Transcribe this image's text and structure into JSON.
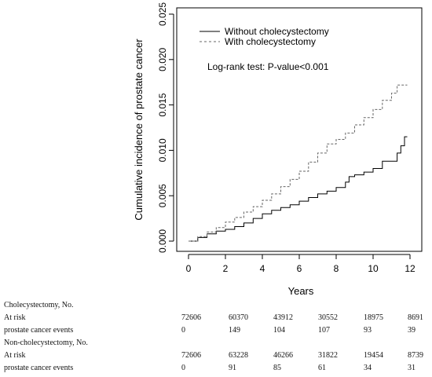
{
  "chart_data": {
    "type": "line",
    "xlabel": "Years",
    "ylabel": "Cumulative incidence of prostate cancer",
    "xlim": [
      0,
      12
    ],
    "ylim": [
      0,
      0.025
    ],
    "x_ticks": [
      "0",
      "2",
      "4",
      "6",
      "8",
      "10",
      "12"
    ],
    "y_ticks": [
      "0.000",
      "0.005",
      "0.010",
      "0.015",
      "0.020",
      "0.025"
    ],
    "grid": false,
    "legend_position": "top-left",
    "annotation": "Log-rank test: P-value<0.001",
    "series": [
      {
        "name": "Without cholecystectomy",
        "style": "solid",
        "color": "#000000",
        "points": [
          [
            0,
            0
          ],
          [
            0.5,
            0.0004
          ],
          [
            1,
            0.0008
          ],
          [
            1.5,
            0.0011
          ],
          [
            2,
            0.0013
          ],
          [
            2.5,
            0.0016
          ],
          [
            3,
            0.002
          ],
          [
            3.5,
            0.0025
          ],
          [
            4,
            0.003
          ],
          [
            4.5,
            0.0034
          ],
          [
            5,
            0.0037
          ],
          [
            5.5,
            0.004
          ],
          [
            6,
            0.0044
          ],
          [
            6.5,
            0.0048
          ],
          [
            7,
            0.0052
          ],
          [
            7.5,
            0.0055
          ],
          [
            8,
            0.0059
          ],
          [
            8.5,
            0.0065
          ],
          [
            8.7,
            0.0071
          ],
          [
            9,
            0.0073
          ],
          [
            9.5,
            0.0076
          ],
          [
            10,
            0.008
          ],
          [
            10.5,
            0.0088
          ],
          [
            11,
            0.0088
          ],
          [
            11.3,
            0.0097
          ],
          [
            11.5,
            0.0105
          ],
          [
            11.7,
            0.0115
          ],
          [
            11.85,
            0.0115
          ]
        ]
      },
      {
        "name": "With cholecystectomy",
        "style": "dashed",
        "color": "#666666",
        "points": [
          [
            0,
            0
          ],
          [
            0.5,
            0.0005
          ],
          [
            1,
            0.001
          ],
          [
            1.5,
            0.0015
          ],
          [
            2,
            0.0021
          ],
          [
            2.5,
            0.0026
          ],
          [
            3,
            0.0032
          ],
          [
            3.5,
            0.0038
          ],
          [
            4,
            0.0045
          ],
          [
            4.5,
            0.0052
          ],
          [
            5,
            0.006
          ],
          [
            5.5,
            0.0068
          ],
          [
            6,
            0.0077
          ],
          [
            6.5,
            0.0087
          ],
          [
            7,
            0.0097
          ],
          [
            7.5,
            0.0107
          ],
          [
            8,
            0.0112
          ],
          [
            8.5,
            0.0119
          ],
          [
            9,
            0.0128
          ],
          [
            9.5,
            0.0136
          ],
          [
            10,
            0.0145
          ],
          [
            10.5,
            0.0155
          ],
          [
            11,
            0.0163
          ],
          [
            11.3,
            0.0172
          ],
          [
            11.85,
            0.0172
          ]
        ]
      }
    ]
  },
  "risk_table": {
    "groups": [
      {
        "title": "Cholecystectomy, No.",
        "rows": [
          {
            "label": "At risk",
            "values": [
              "72606",
              "60370",
              "43912",
              "30552",
              "18975",
              "8691"
            ]
          },
          {
            "label": "prostate cancer events",
            "values": [
              "0",
              "149",
              "104",
              "107",
              "93",
              "39"
            ]
          }
        ]
      },
      {
        "title": "Non-cholecystectomy, No.",
        "rows": [
          {
            "label": "At risk",
            "values": [
              "72606",
              "63228",
              "46266",
              "31822",
              "19454",
              "8739"
            ]
          },
          {
            "label": "prostate cancer  events",
            "values": [
              "0",
              "91",
              "85",
              "61",
              "34",
              "31"
            ]
          }
        ]
      }
    ]
  }
}
